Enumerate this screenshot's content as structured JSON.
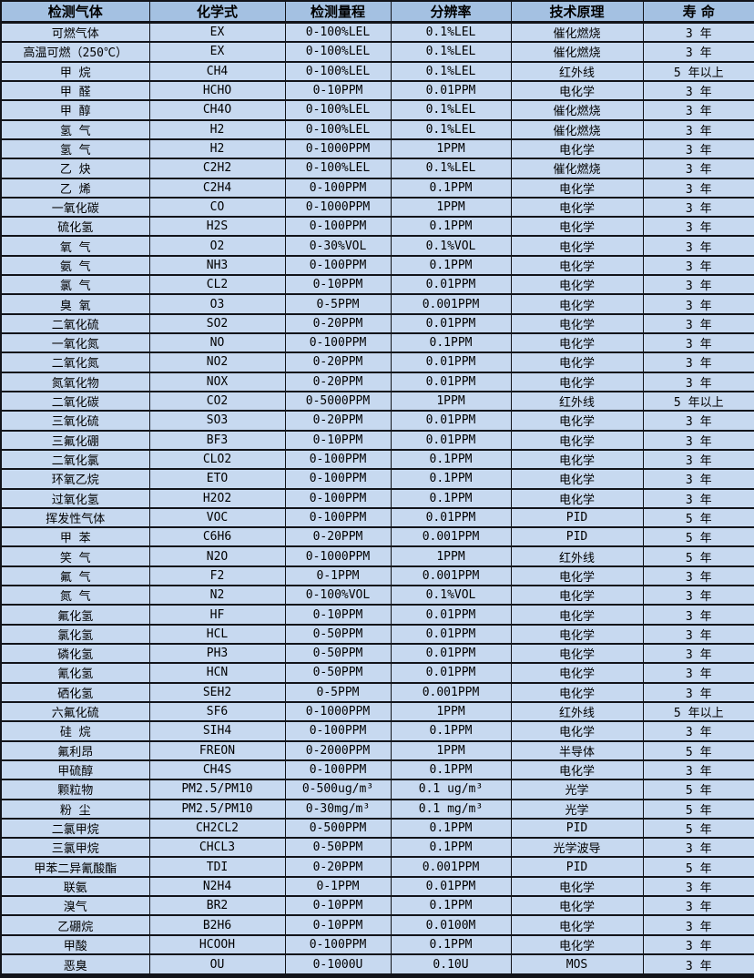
{
  "colors": {
    "header_bg": "#a4c1e2",
    "row_bg": "#c7d9f0",
    "border": "#12141a",
    "text": "#000000"
  },
  "table": {
    "columns": [
      "检测气体",
      "化学式",
      "检测量程",
      "分辨率",
      "技术原理",
      "寿 命"
    ],
    "rows": [
      [
        "可燃气体",
        "EX",
        "0-100%LEL",
        "0.1%LEL",
        "催化燃烧",
        "3 年"
      ],
      [
        "高温可燃（250℃）",
        "EX",
        "0-100%LEL",
        "0.1%LEL",
        "催化燃烧",
        "3 年"
      ],
      [
        "甲 烷",
        "CH4",
        "0-100%LEL",
        "0.1%LEL",
        "红外线",
        "5 年以上"
      ],
      [
        "甲 醛",
        "HCHO",
        "0-10PPM",
        "0.01PPM",
        "电化学",
        "3 年"
      ],
      [
        "甲 醇",
        "CH4O",
        "0-100%LEL",
        "0.1%LEL",
        "催化燃烧",
        "3 年"
      ],
      [
        "氢 气",
        "H2",
        "0-100%LEL",
        "0.1%LEL",
        "催化燃烧",
        "3 年"
      ],
      [
        "氢 气",
        "H2",
        "0-1000PPM",
        "1PPM",
        "电化学",
        "3 年"
      ],
      [
        "乙 炔",
        "C2H2",
        "0-100%LEL",
        "0.1%LEL",
        "催化燃烧",
        "3 年"
      ],
      [
        "乙 烯",
        "C2H4",
        "0-100PPM",
        "0.1PPM",
        "电化学",
        "3 年"
      ],
      [
        "一氧化碳",
        "CO",
        "0-1000PPM",
        "1PPM",
        "电化学",
        "3 年"
      ],
      [
        "硫化氢",
        "H2S",
        "0-100PPM",
        "0.1PPM",
        "电化学",
        "3 年"
      ],
      [
        "氧 气",
        "O2",
        "0-30%VOL",
        "0.1%VOL",
        "电化学",
        "3 年"
      ],
      [
        "氨 气",
        "NH3",
        "0-100PPM",
        "0.1PPM",
        "电化学",
        "3 年"
      ],
      [
        "氯 气",
        "CL2",
        "0-10PPM",
        "0.01PPM",
        "电化学",
        "3 年"
      ],
      [
        "臭 氧",
        "O3",
        "0-5PPM",
        "0.001PPM",
        "电化学",
        "3 年"
      ],
      [
        "二氧化硫",
        "SO2",
        "0-20PPM",
        "0.01PPM",
        "电化学",
        "3 年"
      ],
      [
        "一氧化氮",
        "NO",
        "0-100PPM",
        "0.1PPM",
        "电化学",
        "3 年"
      ],
      [
        "二氧化氮",
        "NO2",
        "0-20PPM",
        "0.01PPM",
        "电化学",
        "3 年"
      ],
      [
        "氮氧化物",
        "NOX",
        "0-20PPM",
        "0.01PPM",
        "电化学",
        "3 年"
      ],
      [
        "二氧化碳",
        "CO2",
        "0-5000PPM",
        "1PPM",
        "红外线",
        "5 年以上"
      ],
      [
        "三氧化硫",
        "SO3",
        "0-20PPM",
        "0.01PPM",
        "电化学",
        "3 年"
      ],
      [
        "三氟化硼",
        "BF3",
        "0-10PPM",
        "0.01PPM",
        "电化学",
        "3 年"
      ],
      [
        "二氧化氯",
        "CLO2",
        "0-100PPM",
        "0.1PPM",
        "电化学",
        "3 年"
      ],
      [
        "环氧乙烷",
        "ETO",
        "0-100PPM",
        "0.1PPM",
        "电化学",
        "3 年"
      ],
      [
        "过氧化氢",
        "H2O2",
        "0-100PPM",
        "0.1PPM",
        "电化学",
        "3 年"
      ],
      [
        "挥发性气体",
        "VOC",
        "0-100PPM",
        "0.01PPM",
        "PID",
        "5 年"
      ],
      [
        "甲 苯",
        "C6H6",
        "0-20PPM",
        "0.001PPM",
        "PID",
        "5 年"
      ],
      [
        "笑 气",
        "N2O",
        "0-1000PPM",
        "1PPM",
        "红外线",
        "5 年"
      ],
      [
        "氟 气",
        "F2",
        "0-1PPM",
        "0.001PPM",
        "电化学",
        "3 年"
      ],
      [
        "氮 气",
        "N2",
        "0-100%VOL",
        "0.1%VOL",
        "电化学",
        "3 年"
      ],
      [
        "氟化氢",
        "HF",
        "0-10PPM",
        "0.01PPM",
        "电化学",
        "3 年"
      ],
      [
        "氯化氢",
        "HCL",
        "0-50PPM",
        "0.01PPM",
        "电化学",
        "3 年"
      ],
      [
        "磷化氢",
        "PH3",
        "0-50PPM",
        "0.01PPM",
        "电化学",
        "3 年"
      ],
      [
        "氰化氢",
        "HCN",
        "0-50PPM",
        "0.01PPM",
        "电化学",
        "3 年"
      ],
      [
        "硒化氢",
        "SEH2",
        "0-5PPM",
        "0.001PPM",
        "电化学",
        "3 年"
      ],
      [
        "六氟化硫",
        "SF6",
        "0-1000PPM",
        "1PPM",
        "红外线",
        "5 年以上"
      ],
      [
        "硅 烷",
        "SIH4",
        "0-100PPM",
        "0.1PPM",
        "电化学",
        "3 年"
      ],
      [
        "氟利昂",
        "FREON",
        "0-2000PPM",
        "1PPM",
        "半导体",
        "5 年"
      ],
      [
        "甲硫醇",
        "CH4S",
        "0-100PPM",
        "0.1PPM",
        "电化学",
        "3 年"
      ],
      [
        "颗粒物",
        "PM2.5/PM10",
        "0-500ug/m³",
        "0.1 ug/m³",
        "光学",
        "5 年"
      ],
      [
        "粉 尘",
        "PM2.5/PM10",
        "0-30mg/m³",
        "0.1 mg/m³",
        "光学",
        "5 年"
      ],
      [
        "二氯甲烷",
        "CH2CL2",
        "0-500PPM",
        "0.1PPM",
        "PID",
        "5 年"
      ],
      [
        "三氯甲烷",
        "CHCL3",
        "0-50PPM",
        "0.1PPM",
        "光学波导",
        "3 年"
      ],
      [
        "甲苯二异氰酸酯",
        "TDI",
        "0-20PPM",
        "0.001PPM",
        "PID",
        "5 年"
      ],
      [
        "联氨",
        "N2H4",
        "0-1PPM",
        "0.01PPM",
        "电化学",
        "3 年"
      ],
      [
        "溴气",
        "BR2",
        "0-10PPM",
        "0.1PPM",
        "电化学",
        "3 年"
      ],
      [
        "乙硼烷",
        "B2H6",
        "0-10PPM",
        "0.0100M",
        "电化学",
        "3 年"
      ],
      [
        "甲酸",
        "HCOOH",
        "0-100PPM",
        "0.1PPM",
        "电化学",
        "3 年"
      ],
      [
        "恶臭",
        "OU",
        "0-1000U",
        "0.10U",
        "MOS",
        "3 年"
      ]
    ]
  }
}
